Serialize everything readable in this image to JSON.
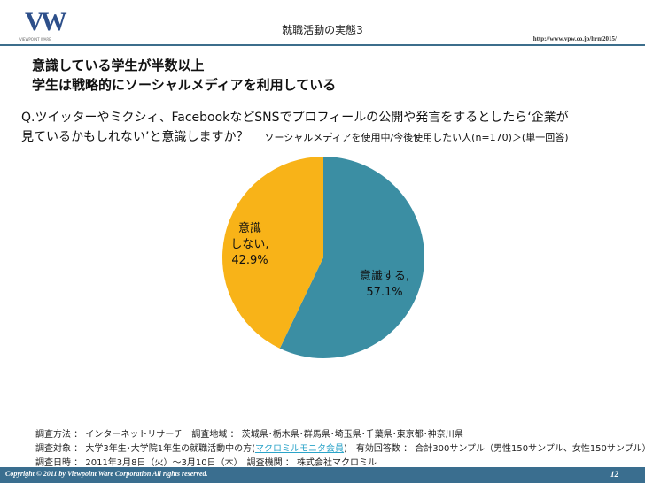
{
  "header": {
    "logo_text": "VW",
    "logo_sub": "VIEWPOINT WARE",
    "title": "就職活動の実態3",
    "url": "http://www.vpw.co.jp/hrm2015/"
  },
  "headline": {
    "line1": "意識している学生が半数以上",
    "line2": "学生は戦略的にソーシャルメディアを利用している"
  },
  "question": {
    "line1": "Q.ツイッターやミクシィ、FacebookなどSNSでプロフィールの公開や発言をするとしたら‘企業が",
    "line2": "見ているかもしれない’と意識しますか？",
    "note": "ソーシャルメディアを使用中/今後使用したい人(n=170)＞(単一回答)"
  },
  "chart_data": {
    "type": "pie",
    "slices": [
      {
        "label": "意識する",
        "value": 57.1,
        "value_label": "57.1%",
        "color": "#3b8ea3"
      },
      {
        "label": "意識しない",
        "value": 42.9,
        "value_label": "42.9%",
        "color": "#f8b318"
      }
    ]
  },
  "chart_labels": {
    "yes_line1": "意識する,",
    "yes_line2": "57.1%",
    "no_line1": "意識",
    "no_line2": "しない,",
    "no_line3": "42.9%"
  },
  "footer": {
    "method": "調査方法 ： インターネットリサーチ　調査地域 ： 茨城県･栃木県･群馬県･埼玉県･千葉県･東京都･神奈川県",
    "target_pre": "調査対象 ： 大学3年生･大学院1年生の就職活動中の方(",
    "target_link": "マクロミルモニタ会員",
    "target_post": ")　有効回答数 ： 合計300サンプル（男性150サンプル、女性150サンプル）",
    "date": "調査日時 ： 2011年3月8日（火）～3月10日（木）　調査機関 ： 株式会社マクロミル",
    "copyright": "Copyright © 2011 by Viewpoint Ware Corporation All rights reserved.",
    "page": "12"
  }
}
